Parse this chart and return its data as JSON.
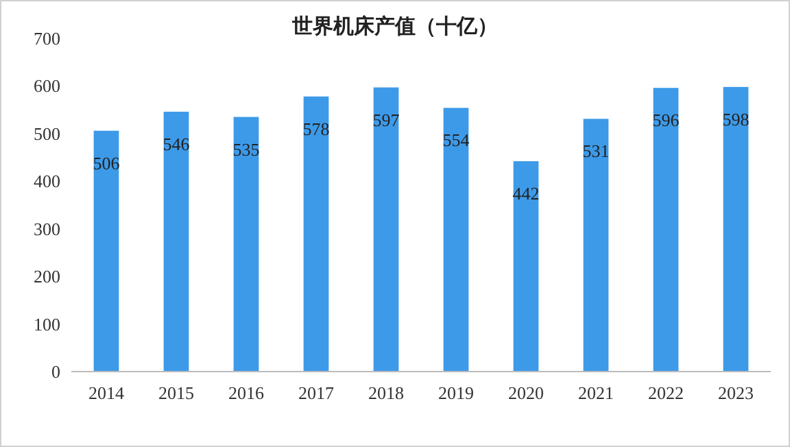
{
  "chart_data": {
    "type": "bar",
    "title": "世界机床产值（十亿）",
    "categories": [
      "2014",
      "2015",
      "2016",
      "2017",
      "2018",
      "2019",
      "2020",
      "2021",
      "2022",
      "2023"
    ],
    "values": [
      506,
      546,
      535,
      578,
      597,
      554,
      442,
      531,
      596,
      598
    ],
    "color": "#3d9ae8",
    "ylim": [
      0,
      700
    ],
    "yticks": [
      0,
      100,
      200,
      300,
      400,
      500,
      600,
      700
    ],
    "grid": false,
    "data_labels": true
  }
}
